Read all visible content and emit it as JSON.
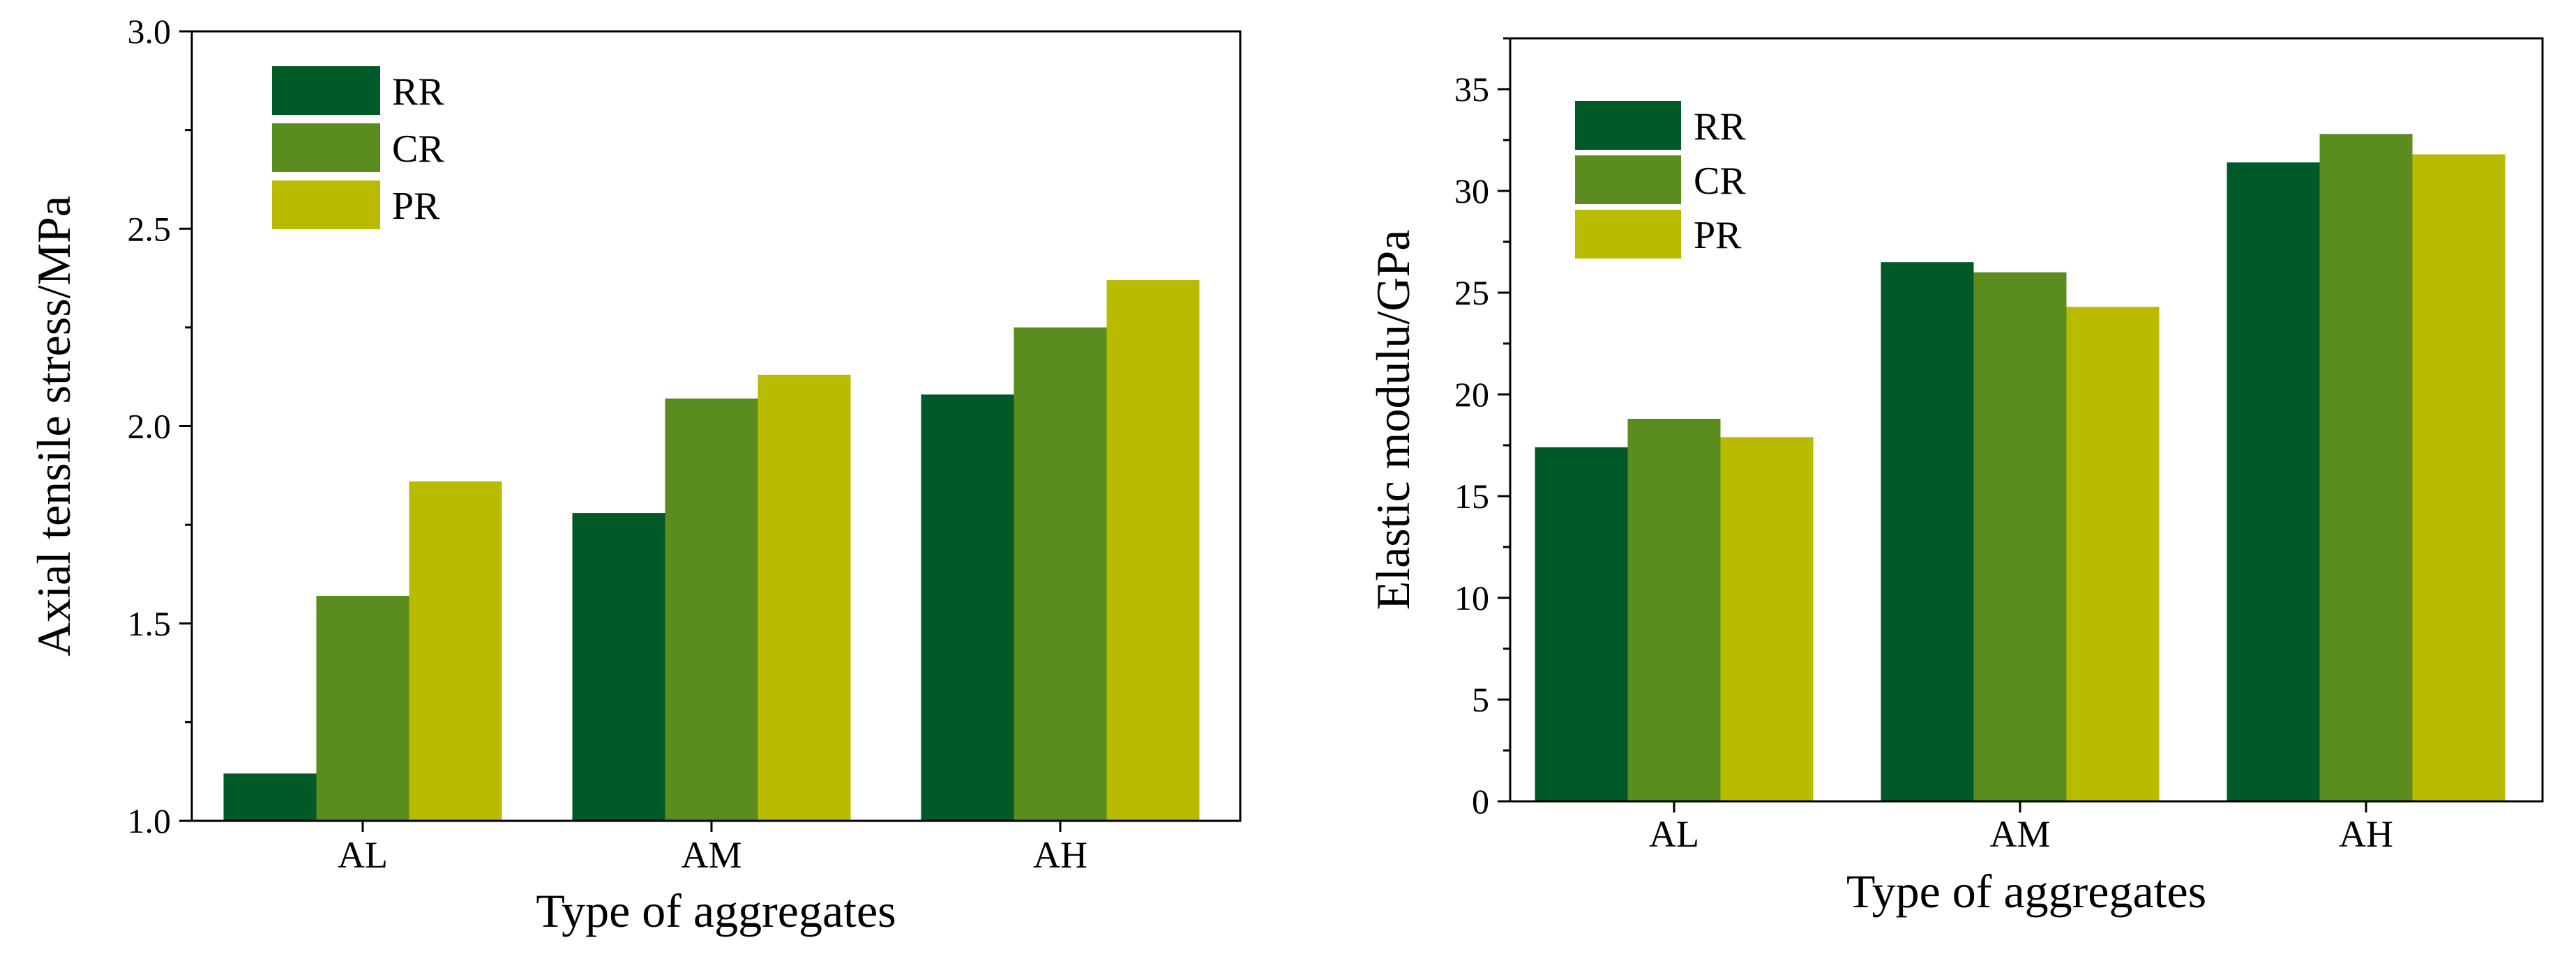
{
  "chart_data": [
    {
      "type": "bar",
      "title": "",
      "xlabel": "Type of aggregates",
      "ylabel": "Axial tensile stress/MPa",
      "categories": [
        "AL",
        "AM",
        "AH"
      ],
      "ylim": [
        1.0,
        3.0
      ],
      "yticks": [
        1.0,
        1.5,
        2.0,
        2.5,
        3.0
      ],
      "ytick_labels": [
        "1.0",
        "1.5",
        "2.0",
        "2.5",
        "3.0"
      ],
      "grid": false,
      "legend_position": "top-left",
      "series": [
        {
          "name": "RR",
          "color": "#005A28",
          "values": [
            1.12,
            1.78,
            2.08
          ]
        },
        {
          "name": "CR",
          "color": "#5A8C1E",
          "values": [
            1.57,
            2.07,
            2.25
          ]
        },
        {
          "name": "PR",
          "color": "#B9BB00",
          "values": [
            1.86,
            2.13,
            2.37
          ]
        }
      ]
    },
    {
      "type": "bar",
      "title": "",
      "xlabel": "Type of aggregates",
      "ylabel": "Elastic modulu/GPa",
      "categories": [
        "AL",
        "AM",
        "AH"
      ],
      "ylim": [
        0,
        37.5
      ],
      "yticks": [
        0,
        5,
        10,
        15,
        20,
        25,
        30,
        35
      ],
      "ytick_labels": [
        "0",
        "5",
        "10",
        "15",
        "20",
        "25",
        "30",
        "35"
      ],
      "grid": false,
      "legend_position": "top-left",
      "series": [
        {
          "name": "RR",
          "color": "#005A28",
          "values": [
            17.4,
            26.5,
            31.4
          ]
        },
        {
          "name": "CR",
          "color": "#5A8C1E",
          "values": [
            18.8,
            26.0,
            32.8
          ]
        },
        {
          "name": "PR",
          "color": "#B9BB00",
          "values": [
            17.9,
            24.3,
            31.8
          ]
        }
      ]
    }
  ]
}
